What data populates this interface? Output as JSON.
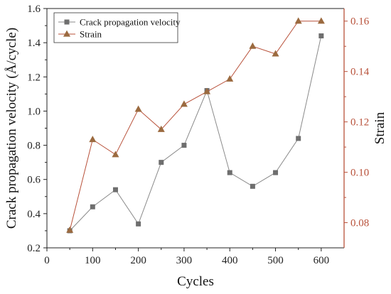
{
  "chart_data": {
    "type": "line",
    "title": "",
    "xlabel": "Cycles",
    "ylabel": "Crack propagation velocity (Å/cycle)",
    "y2label": "Strain",
    "xlim": [
      0,
      650
    ],
    "ylim": [
      0.2,
      1.6
    ],
    "y2lim": [
      0.07,
      0.165
    ],
    "x_ticks": [
      0,
      100,
      200,
      300,
      400,
      500,
      600
    ],
    "x_tick_labels": [
      "0",
      "100",
      "200",
      "300",
      "400",
      "500",
      "600"
    ],
    "y_ticks": [
      0.2,
      0.4,
      0.6,
      0.8,
      1.0,
      1.2,
      1.4,
      1.6
    ],
    "y_tick_labels": [
      "0.2",
      "0.4",
      "0.6",
      "0.8",
      "1.0",
      "1.2",
      "1.4",
      "1.6"
    ],
    "y2_ticks": [
      0.08,
      0.1,
      0.12,
      0.14,
      0.16
    ],
    "y2_tick_labels": [
      "0.08",
      "0.10",
      "0.12",
      "0.14",
      "0.16"
    ],
    "grid": false,
    "legend_position": "top-left",
    "x": [
      50,
      100,
      150,
      200,
      250,
      300,
      350,
      400,
      450,
      500,
      550,
      600
    ],
    "series": [
      {
        "name": "Crack propagation velocity",
        "axis": "left",
        "marker": "square",
        "color": "#6e6e6e",
        "line_color": "#8a8a8a",
        "values": [
          0.3,
          0.44,
          0.54,
          0.34,
          0.7,
          0.8,
          1.12,
          0.64,
          0.56,
          0.64,
          0.84,
          1.44
        ]
      },
      {
        "name": "Strain",
        "axis": "right",
        "marker": "triangle",
        "color": "#9b6a3f",
        "line_color": "#b8513a",
        "values": [
          0.077,
          0.113,
          0.107,
          0.125,
          0.117,
          0.127,
          0.132,
          0.137,
          0.15,
          0.147,
          0.16,
          0.16
        ]
      }
    ],
    "left_axis_color": "#222222",
    "right_axis_color": "#b8513a"
  }
}
